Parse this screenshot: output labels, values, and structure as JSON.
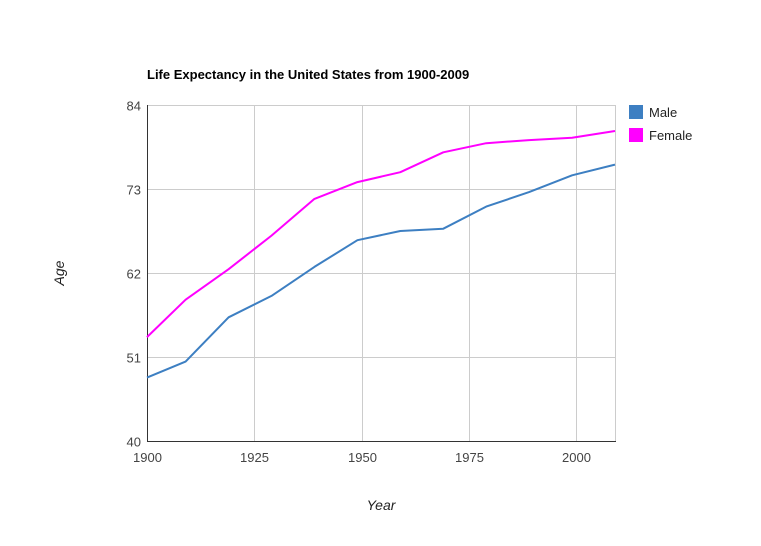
{
  "chart_data": {
    "type": "line",
    "title": "Life Expectancy in the United States from 1900-2009",
    "xlabel": "Year",
    "ylabel": "Age",
    "xlim": [
      1900,
      2009
    ],
    "ylim": [
      40,
      84
    ],
    "x_ticks": [
      1900,
      1925,
      1950,
      1975,
      2000
    ],
    "y_ticks": [
      40,
      51,
      62,
      73,
      84
    ],
    "grid": true,
    "legend_position": "right",
    "x": [
      1900,
      1909,
      1919,
      1929,
      1939,
      1949,
      1959,
      1969,
      1979,
      1989,
      1999,
      2009
    ],
    "series": [
      {
        "name": "Male",
        "color": "#3d7fc2",
        "values": [
          48.3,
          50.4,
          56.2,
          59.0,
          62.8,
          66.3,
          67.5,
          67.8,
          70.7,
          72.6,
          74.8,
          76.2
        ]
      },
      {
        "name": "Female",
        "color": "#ff00ff",
        "values": [
          53.6,
          58.5,
          62.5,
          66.9,
          71.7,
          73.9,
          75.2,
          77.8,
          79.0,
          79.4,
          79.7,
          80.6
        ]
      }
    ]
  }
}
